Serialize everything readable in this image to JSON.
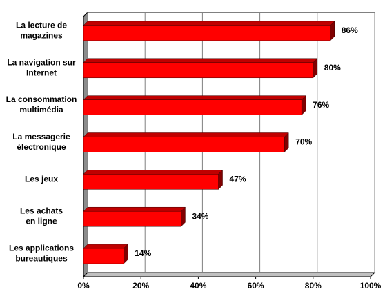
{
  "chart_data": {
    "type": "bar3d-horizontal",
    "categories": [
      [
        "La lecture de",
        "magazines"
      ],
      [
        "La navigation sur",
        "Internet"
      ],
      [
        "La consommation",
        "multimédia"
      ],
      [
        "La messagerie",
        "électronique"
      ],
      [
        "Les jeux"
      ],
      [
        "Les achats",
        "en ligne"
      ],
      [
        "Les applications",
        "bureautiques"
      ]
    ],
    "values": [
      86,
      80,
      76,
      70,
      47,
      34,
      14
    ],
    "value_labels": [
      "86%",
      "80%",
      "76%",
      "70%",
      "47%",
      "34%",
      "14%"
    ],
    "color": "#ff0000",
    "xlim": [
      0,
      100
    ],
    "xticks": [
      {
        "value": 0,
        "label": "0%"
      },
      {
        "value": 20,
        "label": "20%"
      },
      {
        "value": 40,
        "label": "40%"
      },
      {
        "value": 60,
        "label": "60%"
      },
      {
        "value": 80,
        "label": "80%"
      },
      {
        "value": 100,
        "label": "100%"
      }
    ],
    "grid": true
  }
}
